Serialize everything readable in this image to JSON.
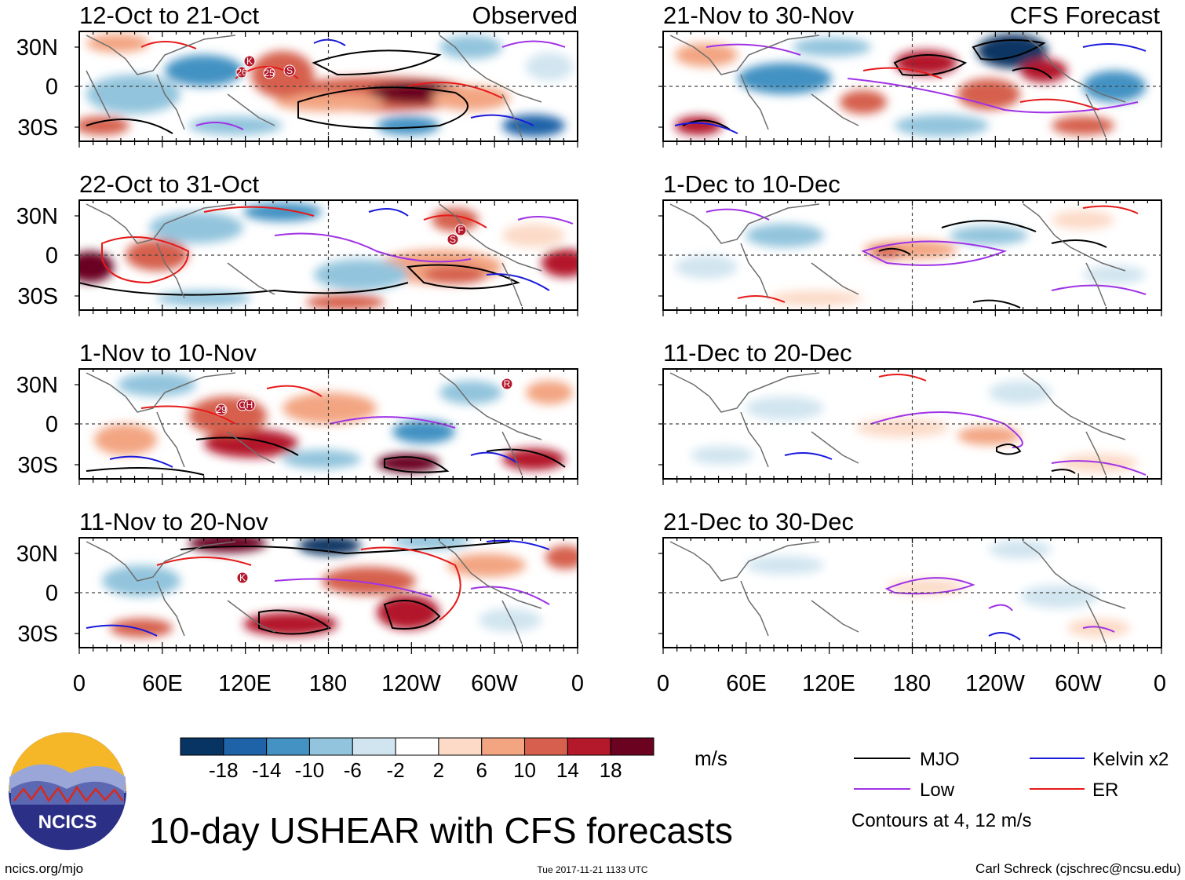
{
  "figure": {
    "title": "10-day USHEAR with CFS forecasts",
    "timestamp": "Tue 2017-11-21 1133 UTC",
    "site": "ncics.org/mjo",
    "author": "Carl Schreck (cjschrec@ncsu.edu)",
    "logo_text": "NCICS"
  },
  "columns": {
    "left_label": "Observed",
    "right_label": "CFS Forecast"
  },
  "panels": [
    {
      "period": "12-Oct to 21-Oct",
      "kind": "observed",
      "col": 0,
      "row": 0
    },
    {
      "period": "22-Oct to 31-Oct",
      "kind": "observed",
      "col": 0,
      "row": 1
    },
    {
      "period": "1-Nov to 10-Nov",
      "kind": "observed",
      "col": 0,
      "row": 2
    },
    {
      "period": "11-Nov to 20-Nov",
      "kind": "observed",
      "col": 0,
      "row": 3
    },
    {
      "period": "21-Nov to 30-Nov",
      "kind": "forecast",
      "col": 1,
      "row": 0
    },
    {
      "period": "1-Dec to 10-Dec",
      "kind": "forecast",
      "col": 1,
      "row": 1
    },
    {
      "period": "11-Dec to 20-Dec",
      "kind": "forecast",
      "col": 1,
      "row": 2
    },
    {
      "period": "21-Dec to 30-Dec",
      "kind": "forecast",
      "col": 1,
      "row": 3
    }
  ],
  "axes": {
    "lat_labels": [
      "30N",
      "0",
      "30S"
    ],
    "lon_labels": [
      "0",
      "60E",
      "120E",
      "180",
      "120W",
      "60W",
      "0"
    ]
  },
  "colorbar": {
    "units": "m/s",
    "ticks": [
      "-18",
      "-14",
      "-10",
      "-6",
      "-2",
      "2",
      "6",
      "10",
      "14",
      "18"
    ],
    "colors": [
      "#083464",
      "#1e62a8",
      "#4392c3",
      "#92c4dd",
      "#d1e5f0",
      "#ffffff",
      "#fcdac7",
      "#f3a582",
      "#d6604d",
      "#b3182b",
      "#6a0220"
    ]
  },
  "legend": {
    "items": [
      {
        "label": "MJO",
        "color": "#000000"
      },
      {
        "label": "Kelvin x2",
        "color": "#1a1adc"
      },
      {
        "label": "Low",
        "color": "#a032e6"
      },
      {
        "label": "ER",
        "color": "#e61919"
      }
    ],
    "note": "Contours at 4, 12 m/s"
  },
  "storm_markers": [
    {
      "panel": 0,
      "labels": [
        "K",
        "26",
        "25",
        "S"
      ]
    },
    {
      "panel": 1,
      "labels": [
        "F",
        "S"
      ]
    },
    {
      "panel": 2,
      "labels": [
        "29",
        "O",
        "H",
        "R"
      ]
    },
    {
      "panel": 3,
      "labels": [
        "K"
      ]
    }
  ]
}
